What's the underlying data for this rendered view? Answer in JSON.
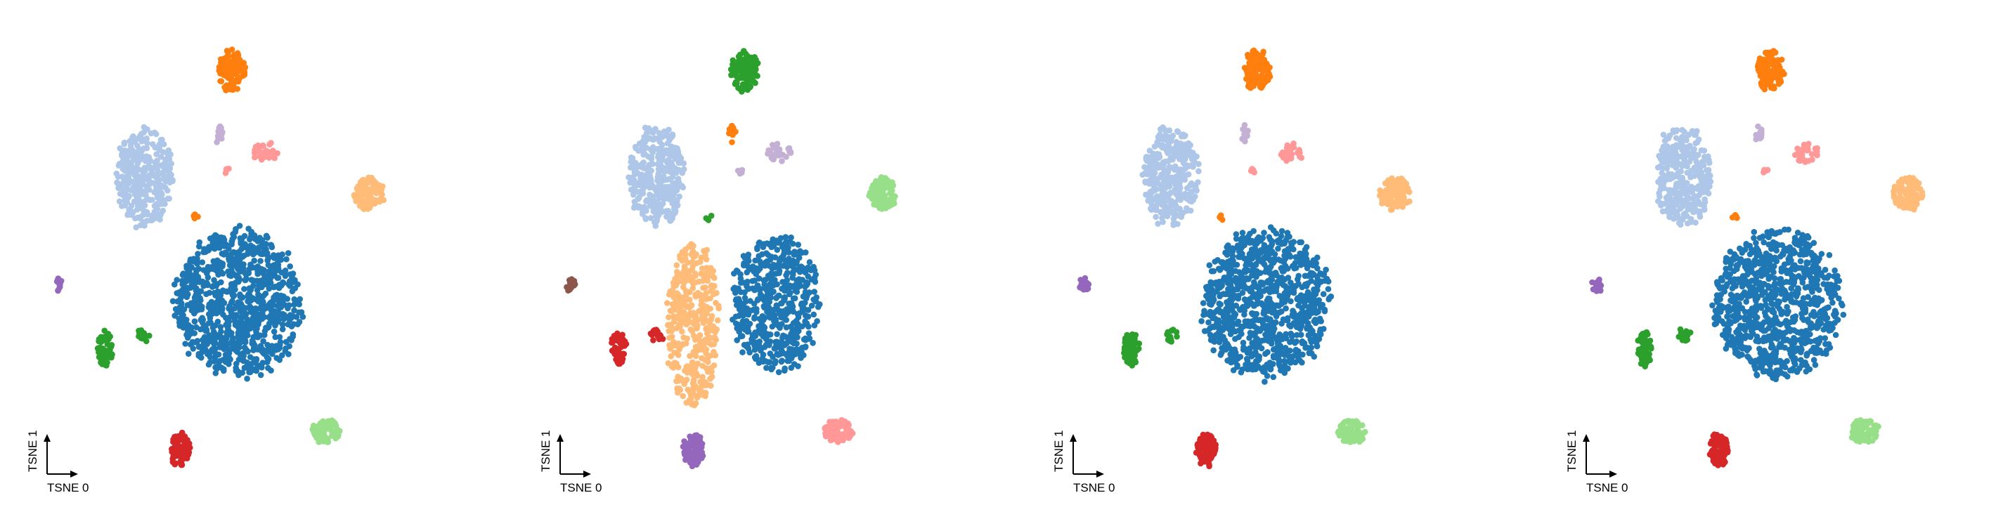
{
  "chart_data": [
    {
      "type": "scatter",
      "xlabel": "TSNE 0",
      "ylabel": "TSNE 1",
      "xlim": [
        0,
        100
      ],
      "ylim": [
        0,
        100
      ],
      "grid": false,
      "legend": "none",
      "clusters": [
        {
          "color": "#1f77b4",
          "center": [
            50,
            42
          ],
          "spread": [
            16,
            16
          ],
          "shape": "disc",
          "count": 900
        },
        {
          "color": "#aec7e8",
          "center": [
            26,
            70
          ],
          "spread": [
            7,
            11
          ],
          "shape": "disc",
          "count": 330
        },
        {
          "color": "#ff7f0e",
          "center": [
            48,
            93
          ],
          "spread": [
            3.5,
            4.5
          ],
          "shape": "disc",
          "count": 110
        },
        {
          "color": "#ffbb78",
          "center": [
            83,
            66
          ],
          "spread": [
            3.8,
            3.6
          ],
          "shape": "disc",
          "count": 110
        },
        {
          "color": "#98df8a",
          "center": [
            72,
            14
          ],
          "spread": [
            3.6,
            2.6
          ],
          "shape": "disc",
          "count": 75
        },
        {
          "color": "#d62728",
          "center": [
            35,
            10
          ],
          "spread": [
            2.6,
            3.6
          ],
          "shape": "disc",
          "count": 85
        },
        {
          "color": "#2ca02c",
          "center": [
            16,
            32
          ],
          "spread": [
            2.0,
            3.8
          ],
          "shape": "disc",
          "count": 55
        },
        {
          "color": "#2ca02c",
          "center": [
            26,
            35
          ],
          "spread": [
            1.8,
            1.6
          ],
          "shape": "disc",
          "count": 15
        },
        {
          "color": "#9467bd",
          "center": [
            4,
            46
          ],
          "spread": [
            1.3,
            1.6
          ],
          "shape": "disc",
          "count": 14
        },
        {
          "color": "#ff9896",
          "center": [
            57,
            75
          ],
          "spread": [
            3.2,
            2.2
          ],
          "shape": "disc",
          "count": 30
        },
        {
          "color": "#c5b0d5",
          "center": [
            45,
            79
          ],
          "spread": [
            0.9,
            2.0
          ],
          "shape": "disc",
          "count": 14
        },
        {
          "color": "#ff9896",
          "center": [
            47,
            71
          ],
          "spread": [
            0.8,
            0.6
          ],
          "shape": "disc",
          "count": 4
        },
        {
          "color": "#ff7f0e",
          "center": [
            39,
            61
          ],
          "spread": [
            0.8,
            0.8
          ],
          "shape": "disc",
          "count": 4
        }
      ]
    },
    {
      "type": "scatter",
      "xlabel": "TSNE 0",
      "ylabel": "TSNE 1",
      "xlim": [
        0,
        100
      ],
      "ylim": [
        0,
        100
      ],
      "grid": false,
      "legend": "none",
      "clusters": [
        {
          "color": "#1f77b4",
          "center": [
            56,
            42
          ],
          "spread": [
            11,
            15
          ],
          "shape": "disc",
          "count": 520
        },
        {
          "color": "#ffbb78",
          "center": [
            35,
            37
          ],
          "spread": [
            6.5,
            18
          ],
          "shape": "disc",
          "count": 380
        },
        {
          "color": "#aec7e8",
          "center": [
            26,
            70
          ],
          "spread": [
            7,
            11
          ],
          "shape": "disc",
          "count": 330
        },
        {
          "color": "#2ca02c",
          "center": [
            48,
            93
          ],
          "spread": [
            3.5,
            4.5
          ],
          "shape": "disc",
          "count": 110
        },
        {
          "color": "#98df8a",
          "center": [
            83,
            66
          ],
          "spread": [
            3.8,
            3.6
          ],
          "shape": "disc",
          "count": 110
        },
        {
          "color": "#ff9896",
          "center": [
            72,
            14
          ],
          "spread": [
            3.6,
            2.6
          ],
          "shape": "disc",
          "count": 75
        },
        {
          "color": "#9467bd",
          "center": [
            35,
            10
          ],
          "spread": [
            2.6,
            3.6
          ],
          "shape": "disc",
          "count": 85
        },
        {
          "color": "#d62728",
          "center": [
            16,
            32
          ],
          "spread": [
            2.0,
            3.8
          ],
          "shape": "disc",
          "count": 55
        },
        {
          "color": "#d62728",
          "center": [
            26,
            35
          ],
          "spread": [
            1.8,
            1.6
          ],
          "shape": "disc",
          "count": 15
        },
        {
          "color": "#8c564b",
          "center": [
            4,
            46
          ],
          "spread": [
            1.3,
            1.6
          ],
          "shape": "disc",
          "count": 14
        },
        {
          "color": "#c5b0d5",
          "center": [
            57,
            75
          ],
          "spread": [
            3.2,
            2.2
          ],
          "shape": "disc",
          "count": 30
        },
        {
          "color": "#ff7f0e",
          "center": [
            45,
            79
          ],
          "spread": [
            0.9,
            2.0
          ],
          "shape": "disc",
          "count": 14
        },
        {
          "color": "#c5b0d5",
          "center": [
            47,
            71
          ],
          "spread": [
            0.8,
            0.6
          ],
          "shape": "disc",
          "count": 4
        },
        {
          "color": "#2ca02c",
          "center": [
            39,
            61
          ],
          "spread": [
            0.8,
            0.8
          ],
          "shape": "disc",
          "count": 4
        }
      ]
    },
    {
      "type": "scatter",
      "xlabel": "TSNE 0",
      "ylabel": "TSNE 1",
      "xlim": [
        0,
        100
      ],
      "ylim": [
        0,
        100
      ],
      "grid": false,
      "legend": "none",
      "clusters": [
        {
          "color": "#1f77b4",
          "center": [
            50,
            42
          ],
          "spread": [
            16,
            16
          ],
          "shape": "disc",
          "count": 900
        },
        {
          "color": "#aec7e8",
          "center": [
            26,
            70
          ],
          "spread": [
            7,
            11
          ],
          "shape": "disc",
          "count": 330
        },
        {
          "color": "#ff7f0e",
          "center": [
            48,
            93
          ],
          "spread": [
            3.5,
            4.5
          ],
          "shape": "disc",
          "count": 110
        },
        {
          "color": "#ffbb78",
          "center": [
            83,
            66
          ],
          "spread": [
            3.8,
            3.6
          ],
          "shape": "disc",
          "count": 110
        },
        {
          "color": "#98df8a",
          "center": [
            72,
            14
          ],
          "spread": [
            3.6,
            2.6
          ],
          "shape": "disc",
          "count": 75
        },
        {
          "color": "#d62728",
          "center": [
            35,
            10
          ],
          "spread": [
            2.6,
            3.6
          ],
          "shape": "disc",
          "count": 85
        },
        {
          "color": "#2ca02c",
          "center": [
            16,
            32
          ],
          "spread": [
            2.0,
            3.8
          ],
          "shape": "disc",
          "count": 55
        },
        {
          "color": "#2ca02c",
          "center": [
            26,
            35
          ],
          "spread": [
            1.8,
            1.6
          ],
          "shape": "disc",
          "count": 15
        },
        {
          "color": "#9467bd",
          "center": [
            4,
            46
          ],
          "spread": [
            1.3,
            1.6
          ],
          "shape": "disc",
          "count": 14
        },
        {
          "color": "#ff9896",
          "center": [
            57,
            75
          ],
          "spread": [
            3.2,
            2.2
          ],
          "shape": "disc",
          "count": 30
        },
        {
          "color": "#c5b0d5",
          "center": [
            45,
            79
          ],
          "spread": [
            0.9,
            2.0
          ],
          "shape": "disc",
          "count": 14
        },
        {
          "color": "#ff9896",
          "center": [
            47,
            71
          ],
          "spread": [
            0.8,
            0.6
          ],
          "shape": "disc",
          "count": 4
        },
        {
          "color": "#ff7f0e",
          "center": [
            39,
            61
          ],
          "spread": [
            0.8,
            0.8
          ],
          "shape": "disc",
          "count": 4
        }
      ]
    },
    {
      "type": "scatter",
      "xlabel": "TSNE 0",
      "ylabel": "TSNE 1",
      "xlim": [
        0,
        100
      ],
      "ylim": [
        0,
        100
      ],
      "grid": false,
      "legend": "none",
      "clusters": [
        {
          "color": "#1f77b4",
          "center": [
            50,
            42
          ],
          "spread": [
            16,
            16
          ],
          "shape": "disc",
          "count": 900
        },
        {
          "color": "#aec7e8",
          "center": [
            26,
            70
          ],
          "spread": [
            7,
            11
          ],
          "shape": "disc",
          "count": 330
        },
        {
          "color": "#ff7f0e",
          "center": [
            48,
            93
          ],
          "spread": [
            3.5,
            4.5
          ],
          "shape": "disc",
          "count": 110
        },
        {
          "color": "#ffbb78",
          "center": [
            83,
            66
          ],
          "spread": [
            3.8,
            3.6
          ],
          "shape": "disc",
          "count": 110
        },
        {
          "color": "#98df8a",
          "center": [
            72,
            14
          ],
          "spread": [
            3.6,
            2.6
          ],
          "shape": "disc",
          "count": 75
        },
        {
          "color": "#d62728",
          "center": [
            35,
            10
          ],
          "spread": [
            2.6,
            3.6
          ],
          "shape": "disc",
          "count": 85
        },
        {
          "color": "#2ca02c",
          "center": [
            16,
            32
          ],
          "spread": [
            2.0,
            3.8
          ],
          "shape": "disc",
          "count": 55
        },
        {
          "color": "#2ca02c",
          "center": [
            26,
            35
          ],
          "spread": [
            1.8,
            1.6
          ],
          "shape": "disc",
          "count": 15
        },
        {
          "color": "#9467bd",
          "center": [
            4,
            46
          ],
          "spread": [
            1.3,
            1.6
          ],
          "shape": "disc",
          "count": 14
        },
        {
          "color": "#ff9896",
          "center": [
            57,
            75
          ],
          "spread": [
            3.2,
            2.2
          ],
          "shape": "disc",
          "count": 30
        },
        {
          "color": "#c5b0d5",
          "center": [
            45,
            79
          ],
          "spread": [
            0.9,
            2.0
          ],
          "shape": "disc",
          "count": 14
        },
        {
          "color": "#ff9896",
          "center": [
            47,
            71
          ],
          "spread": [
            0.8,
            0.6
          ],
          "shape": "disc",
          "count": 4
        },
        {
          "color": "#ff7f0e",
          "center": [
            39,
            61
          ],
          "spread": [
            0.8,
            0.8
          ],
          "shape": "disc",
          "count": 4
        }
      ]
    }
  ]
}
